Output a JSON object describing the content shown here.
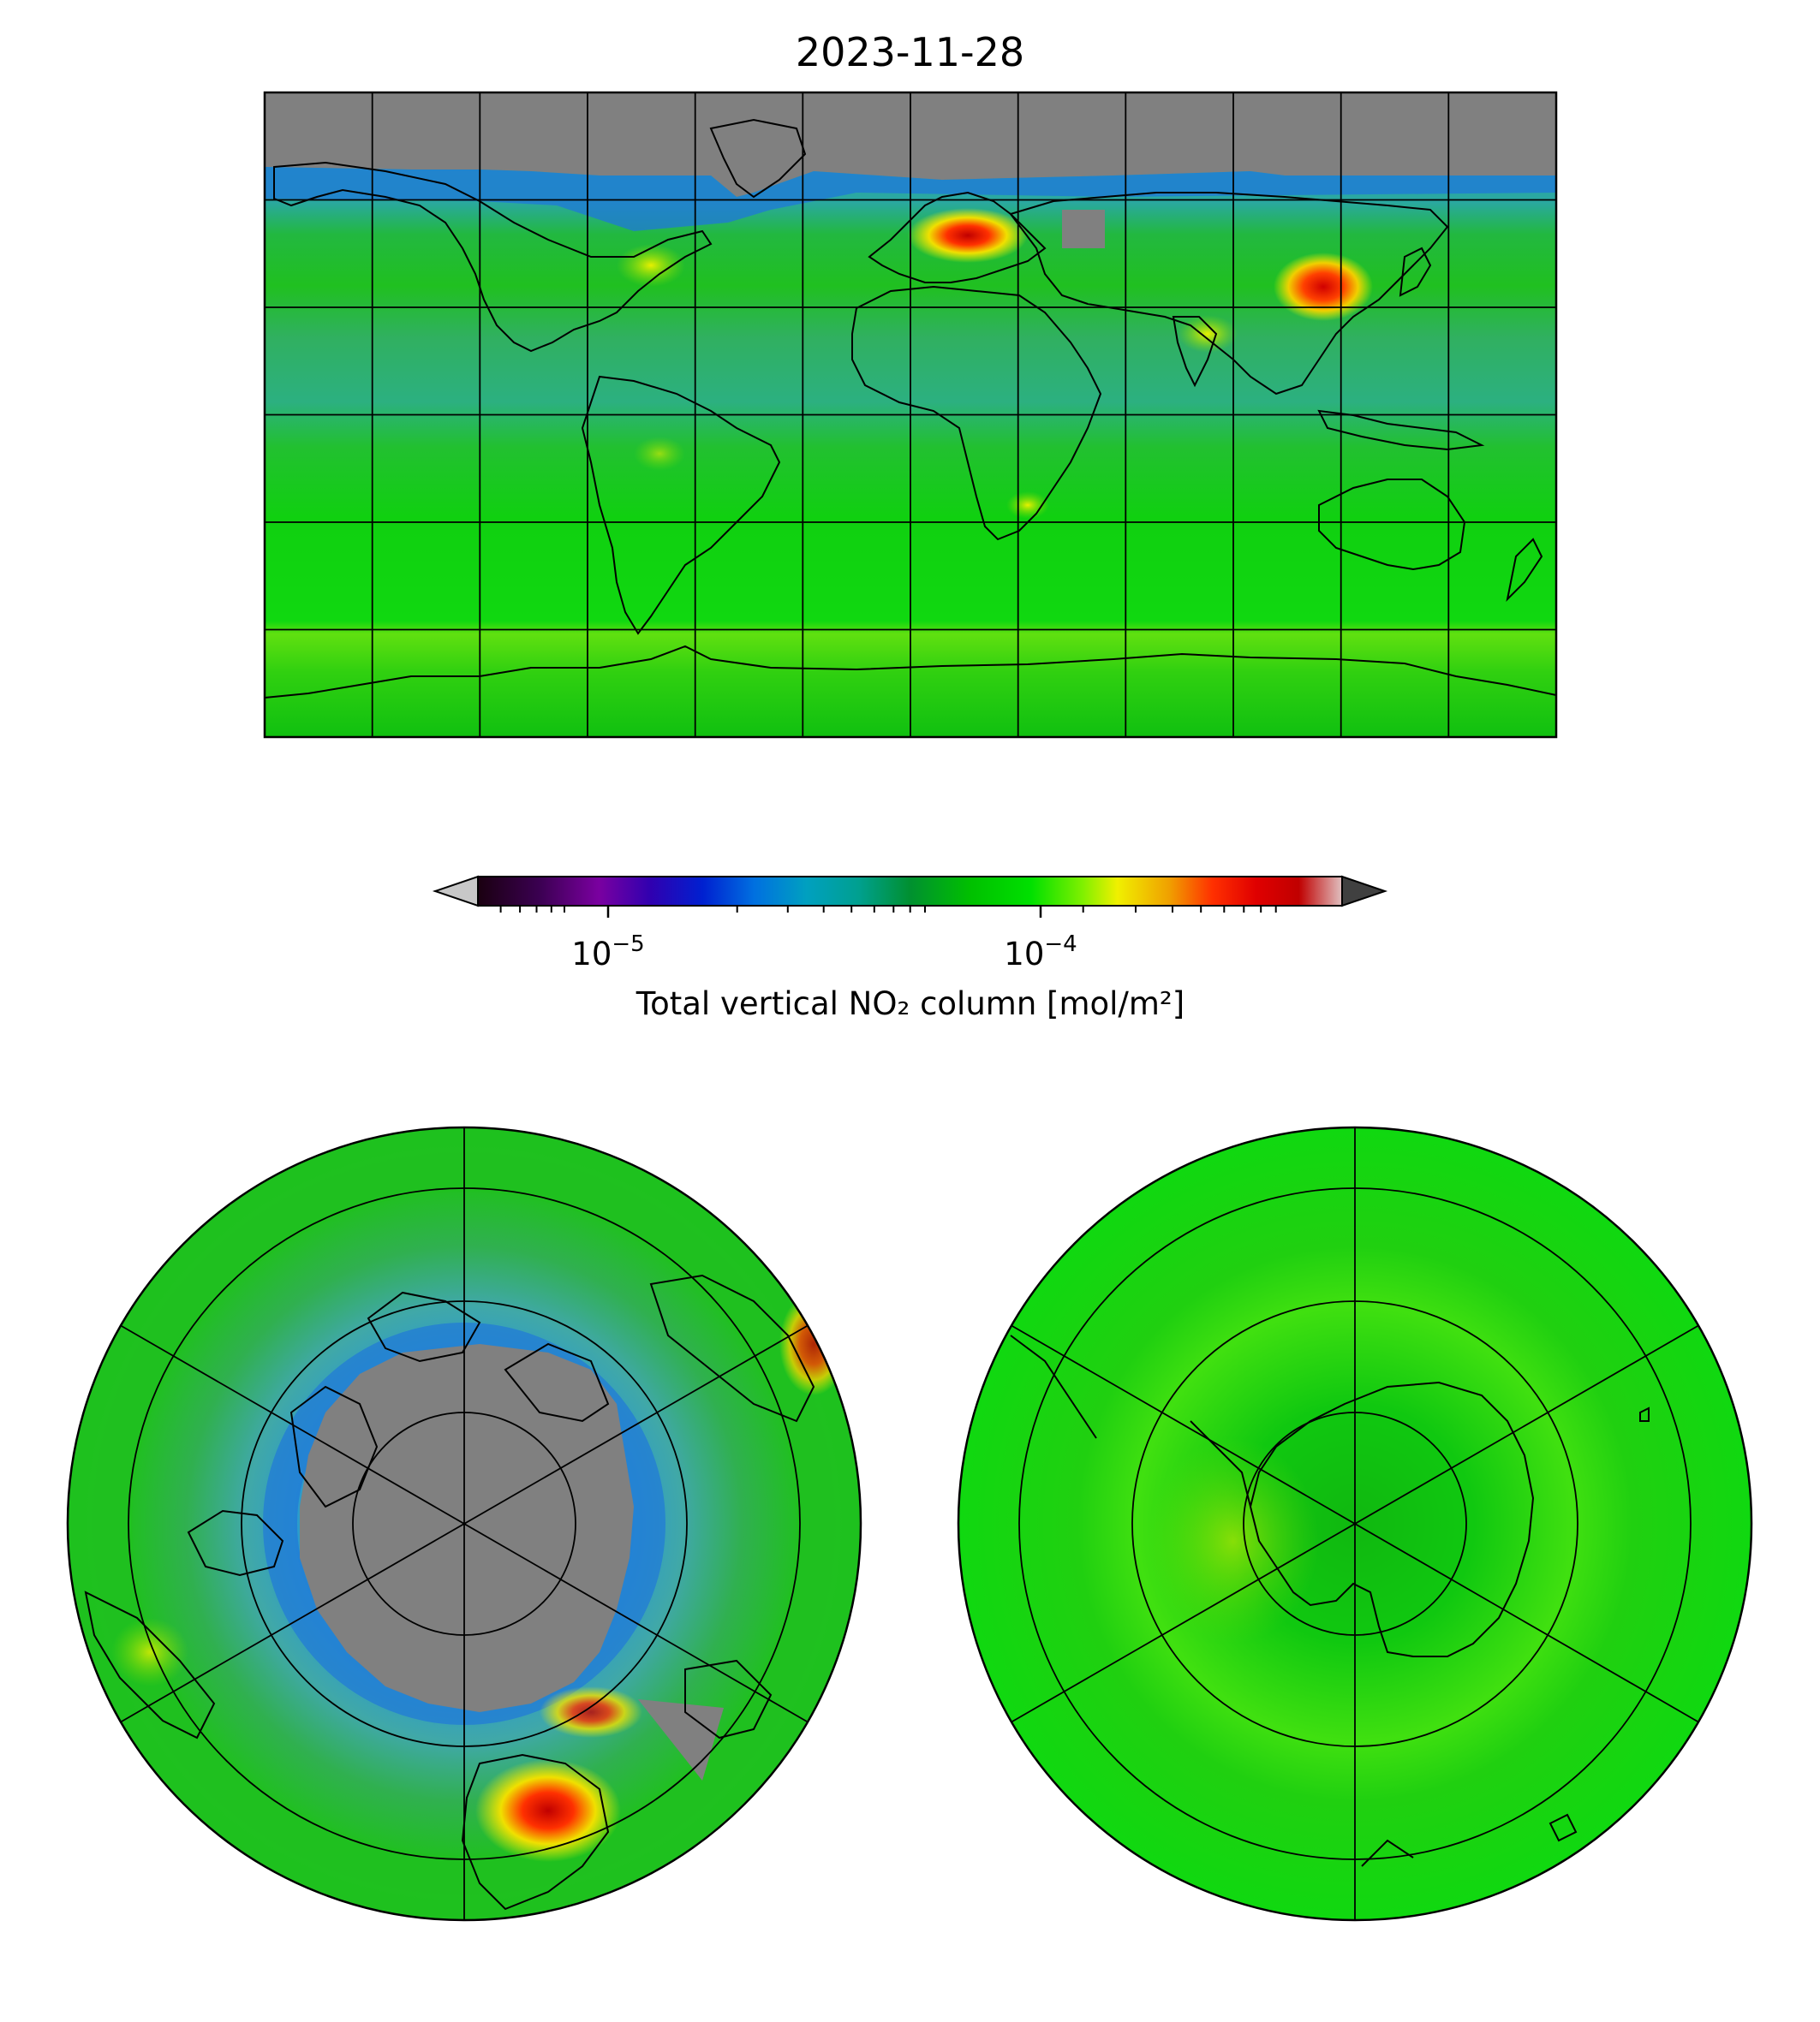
{
  "figure": {
    "title": "2023-11-28"
  },
  "colorbar": {
    "label": "Total vertical NO₂ column [mol/m²]",
    "scale": "log",
    "range": [
      5e-06,
      0.0005
    ],
    "ticks": [
      {
        "value": 1e-05,
        "base": "10",
        "exp": "−5"
      },
      {
        "value": 0.0001,
        "base": "10",
        "exp": "−4"
      }
    ],
    "colors": [
      "#1a0010",
      "#3a0050",
      "#7a00a0",
      "#3000b0",
      "#0020d0",
      "#0070e0",
      "#00a0c0",
      "#00a090",
      "#009030",
      "#00c000",
      "#00e000",
      "#80f000",
      "#f0f000",
      "#f0a000",
      "#ff3000",
      "#e00000",
      "#c00000",
      "#e0c0c0"
    ],
    "extend_low_color": "#c8c8c8",
    "extend_high_color": "#404040",
    "missing_data_color": "#808080"
  },
  "panels": {
    "global": {
      "projection": "Plate Carree",
      "graticule_step_deg": 30
    },
    "north_polar": {
      "projection": "North Polar Stereographic",
      "graticule_step_deg": 30
    },
    "south_polar": {
      "projection": "South Polar Stereographic",
      "graticule_step_deg": 30
    }
  }
}
